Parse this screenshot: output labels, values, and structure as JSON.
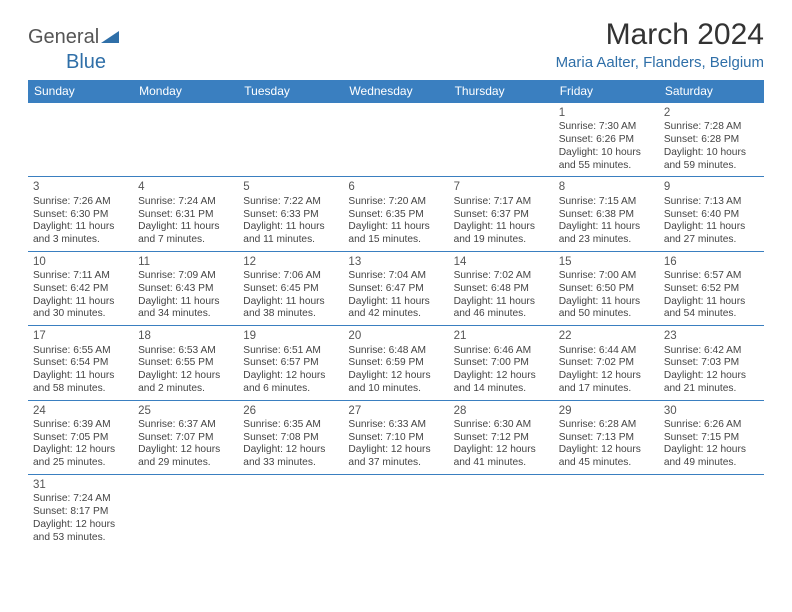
{
  "logo": {
    "part1": "General",
    "part2": "Blue"
  },
  "title": "March 2024",
  "subtitle": "Maria Aalter, Flanders, Belgium",
  "colors": {
    "header_bg": "#3a7fc0",
    "header_text": "#ffffff",
    "accent": "#2f6fa8",
    "border": "#3a7fc0",
    "body_text": "#444444",
    "title_text": "#333333"
  },
  "weekdays": [
    "Sunday",
    "Monday",
    "Tuesday",
    "Wednesday",
    "Thursday",
    "Friday",
    "Saturday"
  ],
  "weeks": [
    [
      null,
      null,
      null,
      null,
      null,
      {
        "n": "1",
        "sr": "Sunrise: 7:30 AM",
        "ss": "Sunset: 6:26 PM",
        "dl": "Daylight: 10 hours and 55 minutes."
      },
      {
        "n": "2",
        "sr": "Sunrise: 7:28 AM",
        "ss": "Sunset: 6:28 PM",
        "dl": "Daylight: 10 hours and 59 minutes."
      }
    ],
    [
      {
        "n": "3",
        "sr": "Sunrise: 7:26 AM",
        "ss": "Sunset: 6:30 PM",
        "dl": "Daylight: 11 hours and 3 minutes."
      },
      {
        "n": "4",
        "sr": "Sunrise: 7:24 AM",
        "ss": "Sunset: 6:31 PM",
        "dl": "Daylight: 11 hours and 7 minutes."
      },
      {
        "n": "5",
        "sr": "Sunrise: 7:22 AM",
        "ss": "Sunset: 6:33 PM",
        "dl": "Daylight: 11 hours and 11 minutes."
      },
      {
        "n": "6",
        "sr": "Sunrise: 7:20 AM",
        "ss": "Sunset: 6:35 PM",
        "dl": "Daylight: 11 hours and 15 minutes."
      },
      {
        "n": "7",
        "sr": "Sunrise: 7:17 AM",
        "ss": "Sunset: 6:37 PM",
        "dl": "Daylight: 11 hours and 19 minutes."
      },
      {
        "n": "8",
        "sr": "Sunrise: 7:15 AM",
        "ss": "Sunset: 6:38 PM",
        "dl": "Daylight: 11 hours and 23 minutes."
      },
      {
        "n": "9",
        "sr": "Sunrise: 7:13 AM",
        "ss": "Sunset: 6:40 PM",
        "dl": "Daylight: 11 hours and 27 minutes."
      }
    ],
    [
      {
        "n": "10",
        "sr": "Sunrise: 7:11 AM",
        "ss": "Sunset: 6:42 PM",
        "dl": "Daylight: 11 hours and 30 minutes."
      },
      {
        "n": "11",
        "sr": "Sunrise: 7:09 AM",
        "ss": "Sunset: 6:43 PM",
        "dl": "Daylight: 11 hours and 34 minutes."
      },
      {
        "n": "12",
        "sr": "Sunrise: 7:06 AM",
        "ss": "Sunset: 6:45 PM",
        "dl": "Daylight: 11 hours and 38 minutes."
      },
      {
        "n": "13",
        "sr": "Sunrise: 7:04 AM",
        "ss": "Sunset: 6:47 PM",
        "dl": "Daylight: 11 hours and 42 minutes."
      },
      {
        "n": "14",
        "sr": "Sunrise: 7:02 AM",
        "ss": "Sunset: 6:48 PM",
        "dl": "Daylight: 11 hours and 46 minutes."
      },
      {
        "n": "15",
        "sr": "Sunrise: 7:00 AM",
        "ss": "Sunset: 6:50 PM",
        "dl": "Daylight: 11 hours and 50 minutes."
      },
      {
        "n": "16",
        "sr": "Sunrise: 6:57 AM",
        "ss": "Sunset: 6:52 PM",
        "dl": "Daylight: 11 hours and 54 minutes."
      }
    ],
    [
      {
        "n": "17",
        "sr": "Sunrise: 6:55 AM",
        "ss": "Sunset: 6:54 PM",
        "dl": "Daylight: 11 hours and 58 minutes."
      },
      {
        "n": "18",
        "sr": "Sunrise: 6:53 AM",
        "ss": "Sunset: 6:55 PM",
        "dl": "Daylight: 12 hours and 2 minutes."
      },
      {
        "n": "19",
        "sr": "Sunrise: 6:51 AM",
        "ss": "Sunset: 6:57 PM",
        "dl": "Daylight: 12 hours and 6 minutes."
      },
      {
        "n": "20",
        "sr": "Sunrise: 6:48 AM",
        "ss": "Sunset: 6:59 PM",
        "dl": "Daylight: 12 hours and 10 minutes."
      },
      {
        "n": "21",
        "sr": "Sunrise: 6:46 AM",
        "ss": "Sunset: 7:00 PM",
        "dl": "Daylight: 12 hours and 14 minutes."
      },
      {
        "n": "22",
        "sr": "Sunrise: 6:44 AM",
        "ss": "Sunset: 7:02 PM",
        "dl": "Daylight: 12 hours and 17 minutes."
      },
      {
        "n": "23",
        "sr": "Sunrise: 6:42 AM",
        "ss": "Sunset: 7:03 PM",
        "dl": "Daylight: 12 hours and 21 minutes."
      }
    ],
    [
      {
        "n": "24",
        "sr": "Sunrise: 6:39 AM",
        "ss": "Sunset: 7:05 PM",
        "dl": "Daylight: 12 hours and 25 minutes."
      },
      {
        "n": "25",
        "sr": "Sunrise: 6:37 AM",
        "ss": "Sunset: 7:07 PM",
        "dl": "Daylight: 12 hours and 29 minutes."
      },
      {
        "n": "26",
        "sr": "Sunrise: 6:35 AM",
        "ss": "Sunset: 7:08 PM",
        "dl": "Daylight: 12 hours and 33 minutes."
      },
      {
        "n": "27",
        "sr": "Sunrise: 6:33 AM",
        "ss": "Sunset: 7:10 PM",
        "dl": "Daylight: 12 hours and 37 minutes."
      },
      {
        "n": "28",
        "sr": "Sunrise: 6:30 AM",
        "ss": "Sunset: 7:12 PM",
        "dl": "Daylight: 12 hours and 41 minutes."
      },
      {
        "n": "29",
        "sr": "Sunrise: 6:28 AM",
        "ss": "Sunset: 7:13 PM",
        "dl": "Daylight: 12 hours and 45 minutes."
      },
      {
        "n": "30",
        "sr": "Sunrise: 6:26 AM",
        "ss": "Sunset: 7:15 PM",
        "dl": "Daylight: 12 hours and 49 minutes."
      }
    ],
    [
      {
        "n": "31",
        "sr": "Sunrise: 7:24 AM",
        "ss": "Sunset: 8:17 PM",
        "dl": "Daylight: 12 hours and 53 minutes."
      },
      null,
      null,
      null,
      null,
      null,
      null
    ]
  ]
}
